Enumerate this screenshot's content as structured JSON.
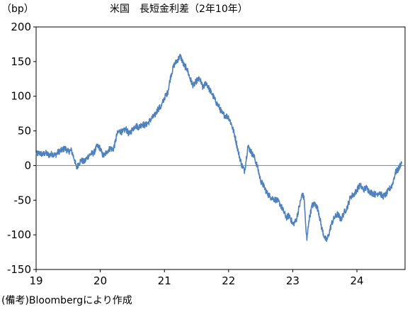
{
  "chart_data": {
    "type": "line",
    "title": "米国　長短金利差（2年10年）",
    "unit_label": "（bp）",
    "source_note": "(備考)Bloombergにより作成",
    "ylim": [
      -150,
      200
    ],
    "y_ticks": [
      200,
      150,
      100,
      50,
      0,
      -50,
      -100,
      -150
    ],
    "xlim": [
      2019.0,
      2024.75
    ],
    "x_ticks": [
      {
        "value": 2019,
        "label": "19"
      },
      {
        "value": 2020,
        "label": "20"
      },
      {
        "value": 2021,
        "label": "21"
      },
      {
        "value": 2022,
        "label": "22"
      },
      {
        "value": 2023,
        "label": "23"
      },
      {
        "value": 2024,
        "label": "24"
      }
    ],
    "zero_line": true,
    "grid": false,
    "line_color": "#4f81bd",
    "series": [
      {
        "x": [
          2019.0,
          2019.05,
          2019.1,
          2019.15,
          2019.2,
          2019.25,
          2019.3,
          2019.35,
          2019.4,
          2019.45,
          2019.5,
          2019.55,
          2019.6,
          2019.63,
          2019.66,
          2019.7,
          2019.75,
          2019.8,
          2019.85,
          2019.9,
          2019.95,
          2020.0,
          2020.03,
          2020.06,
          2020.1,
          2020.13,
          2020.16,
          2020.2,
          2020.23,
          2020.26,
          2020.3,
          2020.35,
          2020.4,
          2020.45,
          2020.5,
          2020.55,
          2020.6,
          2020.65,
          2020.7,
          2020.75,
          2020.8,
          2020.85,
          2020.9,
          2020.95,
          2021.0,
          2021.05,
          2021.1,
          2021.15,
          2021.2,
          2021.25,
          2021.3,
          2021.35,
          2021.4,
          2021.45,
          2021.5,
          2021.55,
          2021.6,
          2021.65,
          2021.7,
          2021.75,
          2021.8,
          2021.85,
          2021.9,
          2021.95,
          2022.0,
          2022.05,
          2022.1,
          2022.15,
          2022.2,
          2022.25,
          2022.3,
          2022.35,
          2022.4,
          2022.45,
          2022.5,
          2022.55,
          2022.6,
          2022.65,
          2022.7,
          2022.75,
          2022.8,
          2022.85,
          2022.9,
          2022.95,
          2023.0,
          2023.05,
          2023.1,
          2023.15,
          2023.18,
          2023.2,
          2023.22,
          2023.25,
          2023.3,
          2023.35,
          2023.4,
          2023.45,
          2023.5,
          2023.53,
          2023.56,
          2023.6,
          2023.65,
          2023.7,
          2023.75,
          2023.8,
          2023.85,
          2023.9,
          2023.95,
          2024.0,
          2024.05,
          2024.1,
          2024.15,
          2024.2,
          2024.25,
          2024.3,
          2024.35,
          2024.4,
          2024.45,
          2024.5,
          2024.55,
          2024.6,
          2024.65,
          2024.68,
          2024.7
        ],
        "values": [
          16,
          18,
          16,
          18,
          15,
          17,
          15,
          20,
          22,
          25,
          20,
          22,
          8,
          -4,
          2,
          8,
          5,
          12,
          17,
          18,
          28,
          25,
          16,
          14,
          20,
          23,
          25,
          23,
          32,
          45,
          50,
          48,
          53,
          45,
          52,
          58,
          55,
          60,
          58,
          62,
          68,
          72,
          82,
          85,
          98,
          105,
          130,
          145,
          152,
          158,
          145,
          140,
          125,
          115,
          122,
          125,
          112,
          120,
          110,
          102,
          92,
          85,
          75,
          72,
          70,
          58,
          42,
          20,
          2,
          -8,
          28,
          20,
          12,
          -2,
          -22,
          -30,
          -40,
          -45,
          -48,
          -50,
          -55,
          -65,
          -75,
          -72,
          -85,
          -80,
          -60,
          -40,
          -50,
          -85,
          -108,
          -80,
          -58,
          -55,
          -65,
          -90,
          -105,
          -108,
          -100,
          -85,
          -75,
          -70,
          -78,
          -68,
          -60,
          -45,
          -42,
          -35,
          -28,
          -35,
          -32,
          -38,
          -40,
          -42,
          -38,
          -45,
          -42,
          -35,
          -28,
          -10,
          -5,
          2,
          5
        ]
      }
    ]
  }
}
